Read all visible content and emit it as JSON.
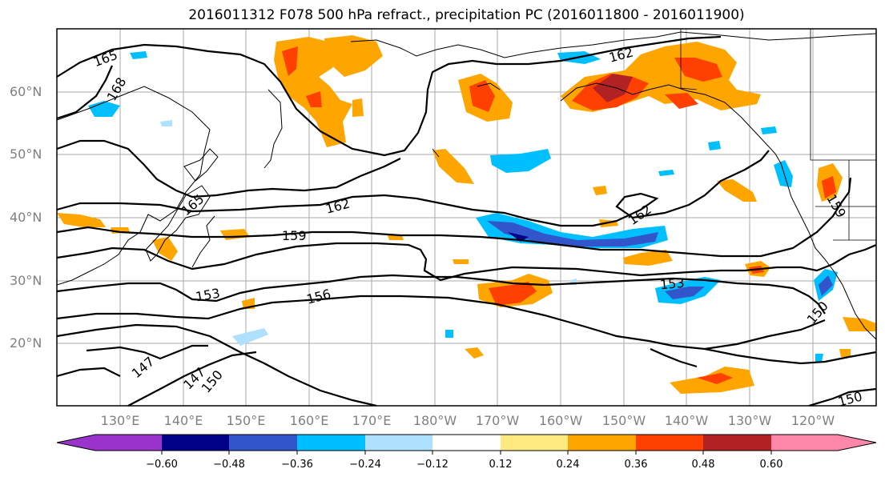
{
  "title": "2016011312 F078 500 hPa refract., precipitation PC (2016011800 - 2016011900)",
  "map": {
    "lat_labels": [
      "60°N",
      "50°N",
      "40°N",
      "30°N",
      "20°N"
    ],
    "lon_labels": [
      "130°E",
      "140°E",
      "150°E",
      "160°E",
      "170°E",
      "180°W",
      "170°W",
      "160°W",
      "150°W",
      "140°W",
      "130°W",
      "120°W"
    ],
    "contour_labels": [
      "165",
      "168",
      "165",
      "162",
      "162",
      "159",
      "159",
      "153",
      "156",
      "153",
      "150",
      "147",
      "147",
      "150",
      "150",
      "162"
    ]
  },
  "colorbar": {
    "colors": [
      "#9933cc",
      "#000088",
      "#3355cc",
      "#00bfff",
      "#aee0ff",
      "#ffffff",
      "#ffe980",
      "#ffa500",
      "#ff4000",
      "#b22222",
      "#ff88aa"
    ],
    "tick_labels": [
      "−0.60",
      "−0.48",
      "−0.36",
      "−0.24",
      "−0.12",
      "0.12",
      "0.24",
      "0.36",
      "0.48",
      "0.60"
    ]
  },
  "colors": {
    "grid": "#aaaaaa",
    "contour": "#000000",
    "coast": "#000000"
  }
}
